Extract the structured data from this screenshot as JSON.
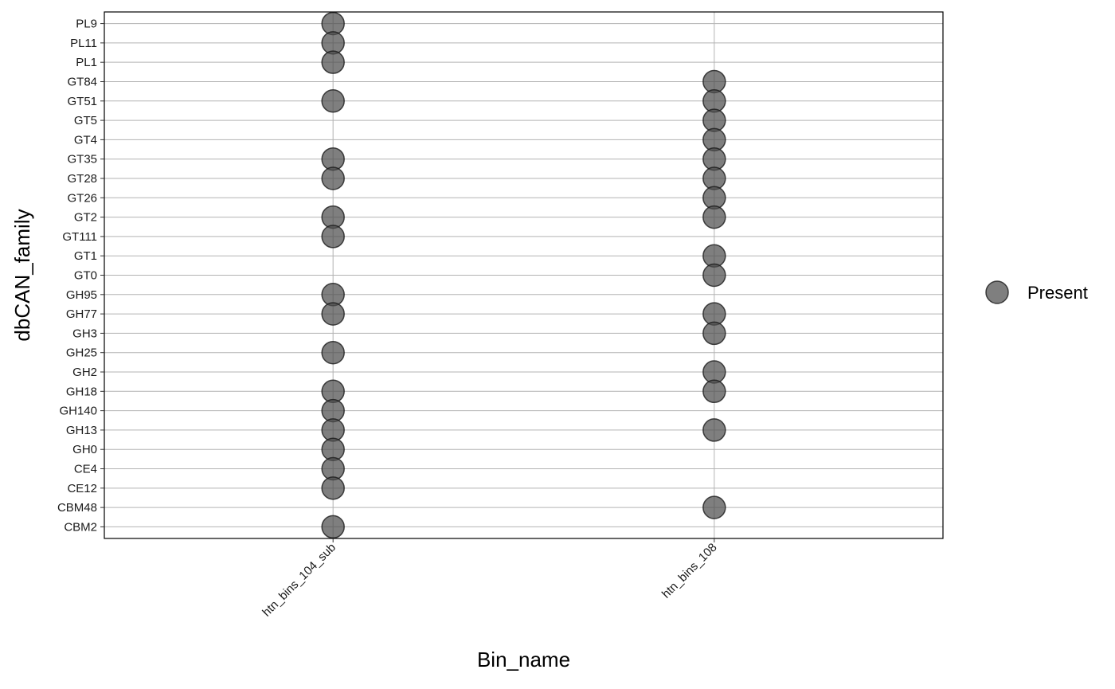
{
  "chart_data": {
    "type": "scatter",
    "xlabel": "Bin_name",
    "ylabel": "dbCAN_family",
    "x_categories": [
      "htn_bins_104_sub",
      "htn_bins_108"
    ],
    "y_categories": [
      "CBM2",
      "CBM48",
      "CE12",
      "CE4",
      "GH0",
      "GH13",
      "GH140",
      "GH18",
      "GH2",
      "GH25",
      "GH3",
      "GH77",
      "GH95",
      "GT0",
      "GT1",
      "GT111",
      "GT2",
      "GT26",
      "GT28",
      "GT35",
      "GT4",
      "GT5",
      "GT51",
      "GT84",
      "PL1",
      "PL11",
      "PL9"
    ],
    "series": [
      {
        "name": "Present",
        "color": "#4d4d4d",
        "points": [
          {
            "x": "htn_bins_104_sub",
            "y": "PL9"
          },
          {
            "x": "htn_bins_104_sub",
            "y": "PL11"
          },
          {
            "x": "htn_bins_104_sub",
            "y": "PL1"
          },
          {
            "x": "htn_bins_104_sub",
            "y": "GT51"
          },
          {
            "x": "htn_bins_104_sub",
            "y": "GT35"
          },
          {
            "x": "htn_bins_104_sub",
            "y": "GT28"
          },
          {
            "x": "htn_bins_104_sub",
            "y": "GT2"
          },
          {
            "x": "htn_bins_104_sub",
            "y": "GT111"
          },
          {
            "x": "htn_bins_104_sub",
            "y": "GH95"
          },
          {
            "x": "htn_bins_104_sub",
            "y": "GH77"
          },
          {
            "x": "htn_bins_104_sub",
            "y": "GH25"
          },
          {
            "x": "htn_bins_104_sub",
            "y": "GH18"
          },
          {
            "x": "htn_bins_104_sub",
            "y": "GH140"
          },
          {
            "x": "htn_bins_104_sub",
            "y": "GH13"
          },
          {
            "x": "htn_bins_104_sub",
            "y": "GH0"
          },
          {
            "x": "htn_bins_104_sub",
            "y": "CE4"
          },
          {
            "x": "htn_bins_104_sub",
            "y": "CE12"
          },
          {
            "x": "htn_bins_104_sub",
            "y": "CBM2"
          },
          {
            "x": "htn_bins_108",
            "y": "GT84"
          },
          {
            "x": "htn_bins_108",
            "y": "GT51"
          },
          {
            "x": "htn_bins_108",
            "y": "GT5"
          },
          {
            "x": "htn_bins_108",
            "y": "GT4"
          },
          {
            "x": "htn_bins_108",
            "y": "GT35"
          },
          {
            "x": "htn_bins_108",
            "y": "GT28"
          },
          {
            "x": "htn_bins_108",
            "y": "GT26"
          },
          {
            "x": "htn_bins_108",
            "y": "GT2"
          },
          {
            "x": "htn_bins_108",
            "y": "GT1"
          },
          {
            "x": "htn_bins_108",
            "y": "GT0"
          },
          {
            "x": "htn_bins_108",
            "y": "GH77"
          },
          {
            "x": "htn_bins_108",
            "y": "GH3"
          },
          {
            "x": "htn_bins_108",
            "y": "GH2"
          },
          {
            "x": "htn_bins_108",
            "y": "GH18"
          },
          {
            "x": "htn_bins_108",
            "y": "GH13"
          },
          {
            "x": "htn_bins_108",
            "y": "CBM48"
          }
        ]
      }
    ],
    "legend": {
      "position": "right",
      "entries": [
        "Present"
      ]
    },
    "grid": true
  }
}
